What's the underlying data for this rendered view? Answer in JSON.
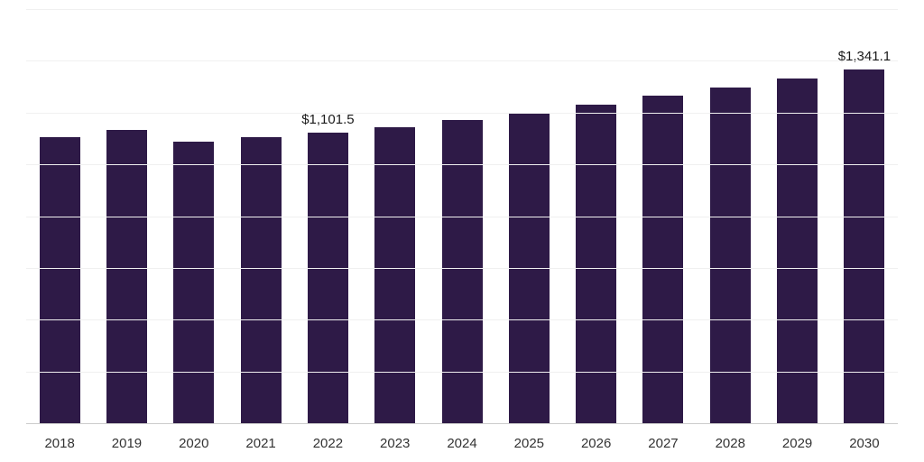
{
  "chart_data": {
    "type": "bar",
    "title": "",
    "xlabel": "",
    "ylabel": "",
    "categories": [
      "2018",
      "2019",
      "2020",
      "2021",
      "2022",
      "2023",
      "2024",
      "2025",
      "2026",
      "2027",
      "2028",
      "2029",
      "2030"
    ],
    "values": [
      1085,
      1113,
      1066,
      1085,
      1101.5,
      1122,
      1150,
      1178,
      1207,
      1240,
      1273,
      1307,
      1341.1
    ],
    "data_labels": [
      {
        "category": "2022",
        "text": "$1,101.5"
      },
      {
        "category": "2030",
        "text": "$1,341.1"
      }
    ],
    "ylim": [
      0,
      1570
    ],
    "grid": true,
    "gridline_count": 8,
    "legend": "none",
    "bar_color": "#2e1a47",
    "gridline_color": "#f0f0f0",
    "axis_line_color": "#cccccc",
    "data_label_color": "#1a1a1a",
    "tick_label_color": "#333333",
    "background_color": "#ffffff"
  }
}
